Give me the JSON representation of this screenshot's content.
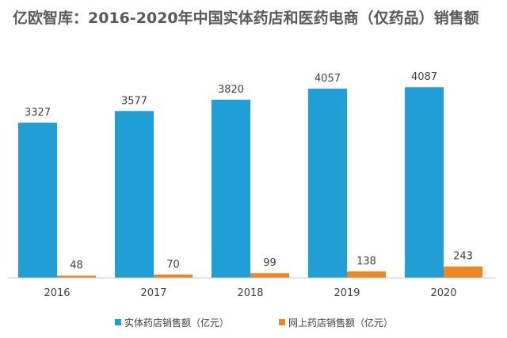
{
  "chart_data": {
    "type": "bar",
    "title": "亿欧智库：2016-2020年中国实体药店和医药电商（仅药品）销售额",
    "categories": [
      "2016",
      "2017",
      "2018",
      "2019",
      "2020"
    ],
    "series": [
      {
        "name": "实体药店销售额（亿元）",
        "values": [
          3327,
          3577,
          3820,
          4057,
          4087
        ],
        "color": "#1f9fd5"
      },
      {
        "name": "网上药店销售额（亿元）",
        "values": [
          48,
          70,
          99,
          138,
          243
        ],
        "color": "#f0861f"
      }
    ],
    "xlabel": "",
    "ylabel": "",
    "ylim": [
      0,
      4300
    ],
    "grid": false,
    "legend_position": "bottom"
  }
}
